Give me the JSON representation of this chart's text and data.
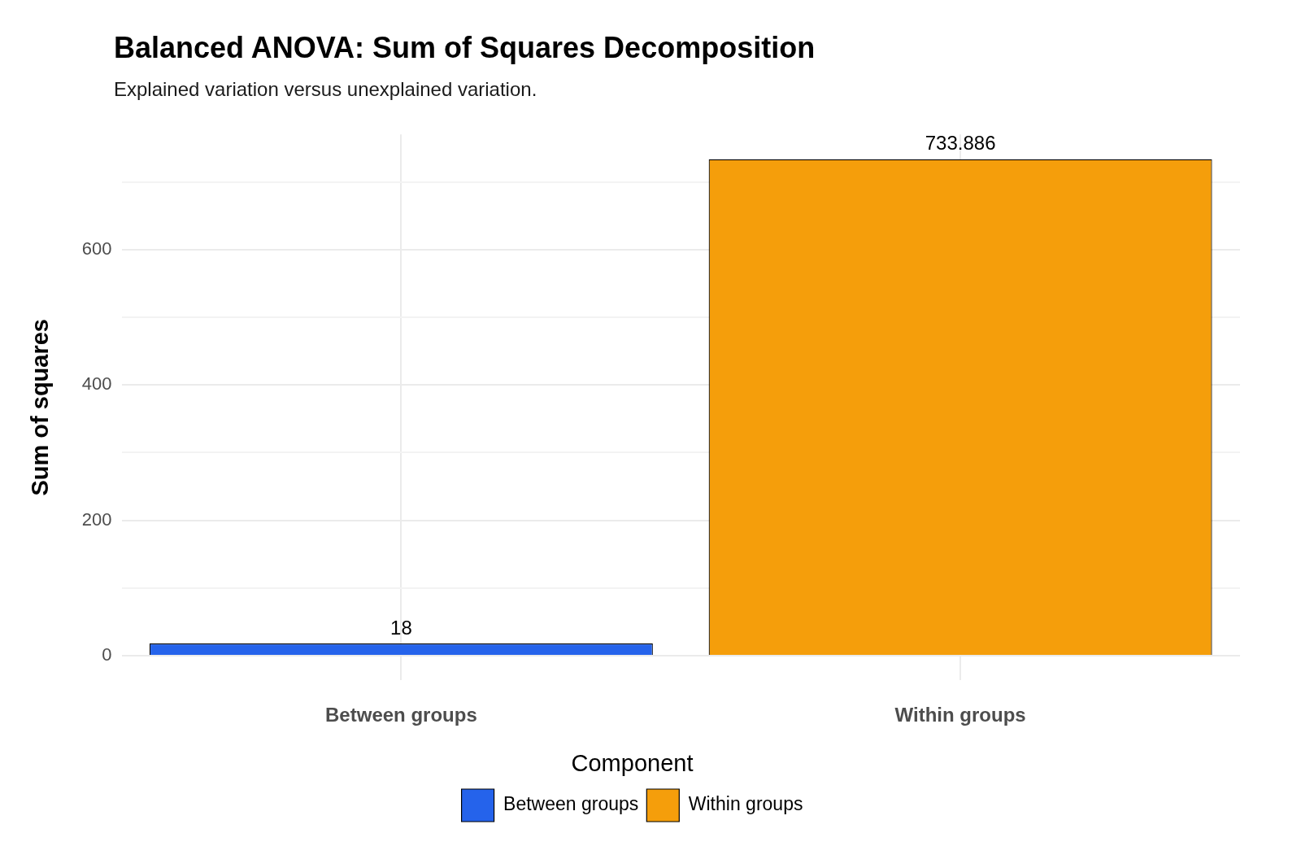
{
  "chart_data": {
    "type": "bar",
    "title": "Balanced ANOVA: Sum of Squares Decomposition",
    "subtitle": "Explained variation versus unexplained variation.",
    "ylabel": "Sum of squares",
    "categories": [
      "Between groups",
      "Within groups"
    ],
    "stacked": true,
    "series": [
      {
        "name": "Between groups",
        "color": "#2563eb",
        "values": [
          18,
          null
        ]
      },
      {
        "name": "Within groups",
        "color": "#f59e0b",
        "values": [
          null,
          733.886
        ]
      }
    ],
    "ylim": [
      -36.69,
      770.58
    ],
    "yticks": [
      0,
      {
        "value": 100,
        "label": null
      },
      200,
      {
        "value": 300,
        "label": null
      },
      400,
      {
        "value": 500,
        "label": null
      },
      600,
      {
        "value": 700,
        "label": null
      }
    ],
    "grid": true,
    "data_labels": true,
    "legend": "bottom",
    "legend_title": "Component"
  }
}
